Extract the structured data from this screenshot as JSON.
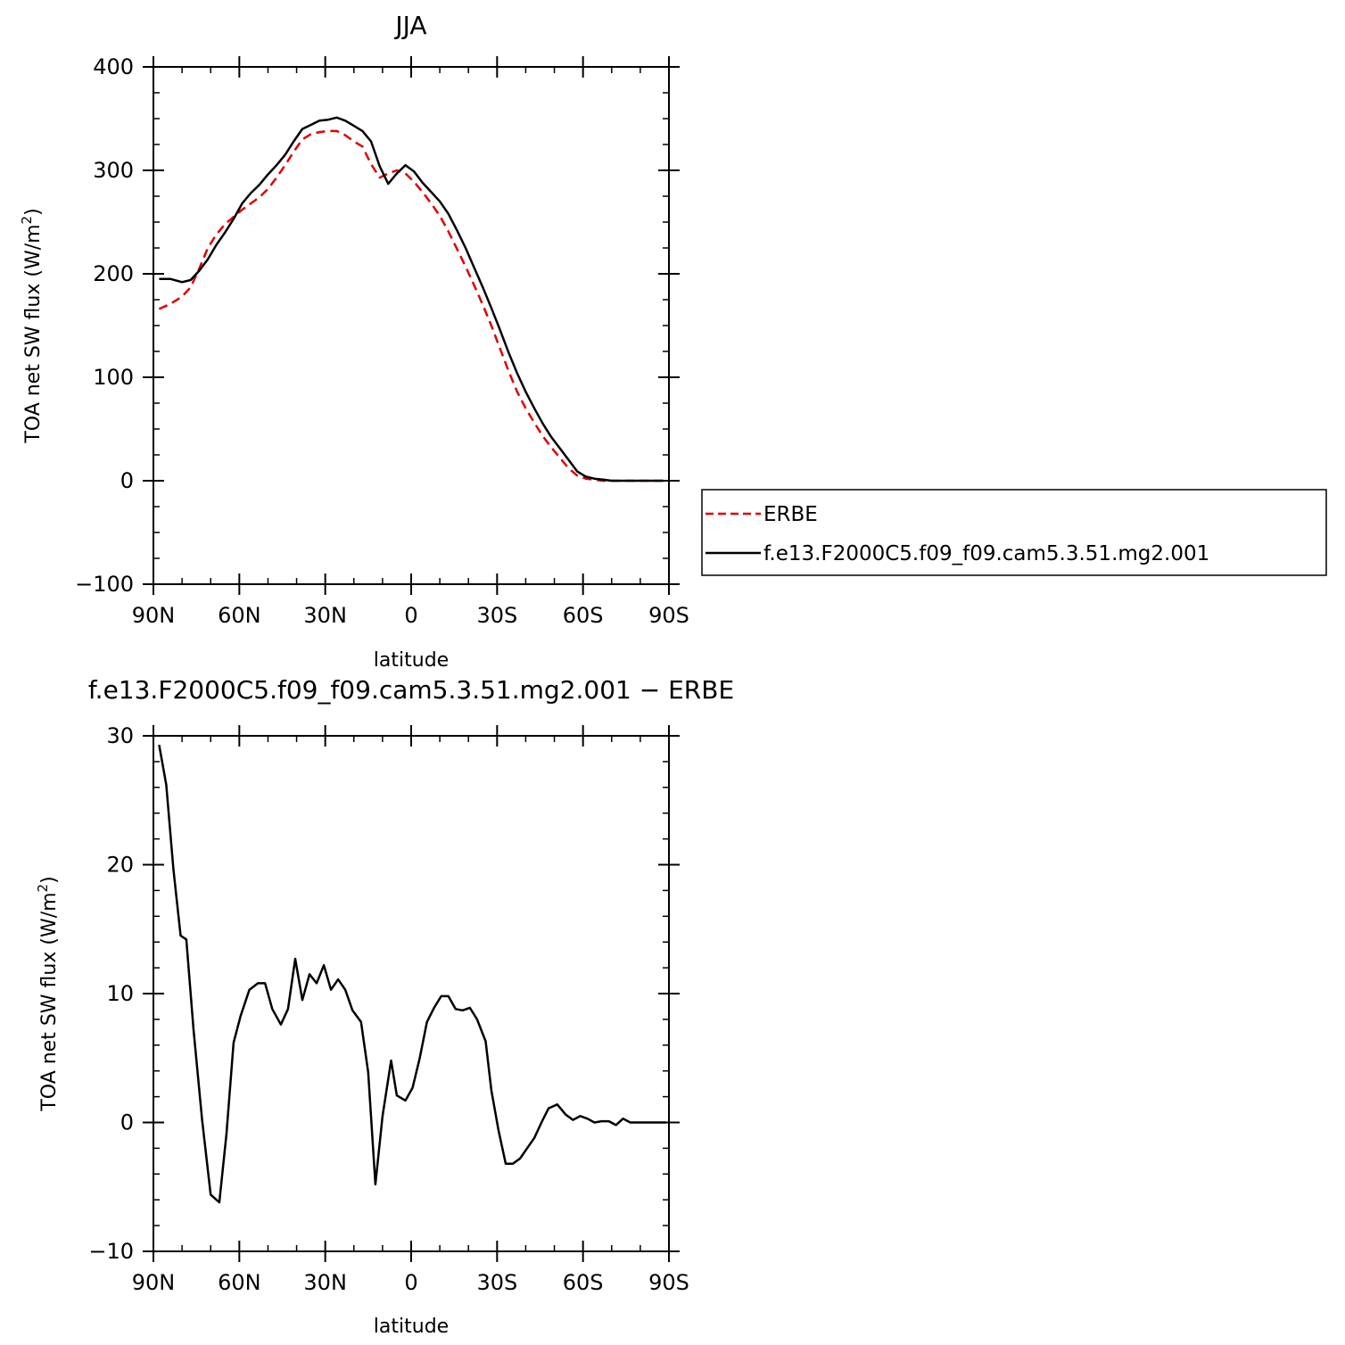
{
  "chart_data": [
    {
      "type": "line",
      "title": "JJA",
      "xlabel": "latitude",
      "ylabel_main": "TOA net SW flux (W/m",
      "ylabel_sup": "2",
      "ylabel_close": ")",
      "xlim": [
        90,
        -90
      ],
      "ylim": [
        -100,
        400
      ],
      "xtick_values": [
        90,
        60,
        30,
        0,
        -30,
        -60,
        -90
      ],
      "xtick_labels": [
        "90N",
        "60N",
        "30N",
        "0",
        "30S",
        "60S",
        "90S"
      ],
      "ytick_values": [
        -100,
        0,
        100,
        200,
        300,
        400
      ],
      "ytick_labels": [
        "−100",
        "0",
        "100",
        "200",
        "300",
        "400"
      ],
      "series": [
        {
          "name": "ERBE",
          "color": "#e00000",
          "dash": "dashed",
          "x": [
            88,
            84,
            80,
            77,
            74,
            71,
            68,
            65,
            62,
            59,
            56,
            53,
            50,
            47,
            44,
            41,
            38,
            35,
            32,
            29,
            26,
            23,
            20,
            17,
            14,
            11,
            8,
            5,
            2,
            -1,
            -4,
            -7,
            -10,
            -13,
            -16,
            -19,
            -22,
            -25,
            -28,
            -31,
            -34,
            -37,
            -40,
            -43,
            -46,
            -49,
            -52,
            -55,
            -58,
            -61,
            -64,
            -67,
            -70,
            -73,
            -76,
            -79,
            -82,
            -85,
            -88
          ],
          "y": [
            166,
            171,
            178,
            187,
            205,
            225,
            238,
            248,
            255,
            262,
            268,
            274,
            282,
            293,
            305,
            318,
            330,
            335,
            337,
            338,
            338,
            334,
            328,
            323,
            306,
            293,
            297,
            300,
            297,
            289,
            279,
            268,
            256,
            241,
            224,
            207,
            189,
            170,
            150,
            128,
            106,
            86,
            70,
            56,
            43,
            32,
            22,
            12,
            5,
            2,
            1,
            0,
            0,
            0,
            0,
            0,
            0,
            0,
            0
          ]
        },
        {
          "name": "f.e13.F2000C5.f09_f09.cam5.3.51.mg2.001",
          "color": "#000000",
          "dash": "solid",
          "x": [
            88,
            84,
            80,
            77,
            74,
            71,
            68,
            65,
            62,
            59,
            56,
            53,
            50,
            47,
            44,
            41,
            38,
            35,
            32,
            29,
            26,
            23,
            20,
            17,
            14,
            11,
            8,
            5,
            2,
            -1,
            -4,
            -7,
            -10,
            -13,
            -16,
            -19,
            -22,
            -25,
            -28,
            -31,
            -34,
            -37,
            -40,
            -43,
            -46,
            -49,
            -52,
            -55,
            -58,
            -61,
            -64,
            -67,
            -70,
            -73,
            -76,
            -79,
            -82,
            -85,
            -88
          ],
          "y": [
            195,
            195,
            192,
            194,
            203,
            214,
            228,
            240,
            253,
            268,
            278,
            286,
            296,
            305,
            315,
            328,
            340,
            344,
            348,
            349,
            351,
            348,
            343,
            338,
            328,
            304,
            287,
            297,
            305,
            299,
            288,
            279,
            270,
            258,
            242,
            225,
            206,
            187,
            167,
            146,
            124,
            104,
            86,
            70,
            55,
            42,
            31,
            20,
            9,
            4,
            2,
            1,
            0,
            0,
            0,
            0,
            0,
            0,
            0
          ]
        }
      ],
      "legend": {
        "placement": "right of plot",
        "entries": [
          {
            "label": "ERBE",
            "color": "#e00000",
            "style": "dashed"
          },
          {
            "label": "f.e13.F2000C5.f09_f09.cam5.3.51.mg2.001",
            "color": "#000000",
            "style": "solid"
          }
        ]
      }
    },
    {
      "type": "line",
      "title": "f.e13.F2000C5.f09_f09.cam5.3.51.mg2.001  −  ERBE",
      "xlabel": "latitude",
      "ylabel_main": "TOA net SW flux (W/m",
      "ylabel_sup": "2",
      "ylabel_close": ")",
      "xlim": [
        90,
        -90
      ],
      "ylim": [
        -10,
        30
      ],
      "xtick_values": [
        90,
        60,
        30,
        0,
        -30,
        -60,
        -90
      ],
      "xtick_labels": [
        "90N",
        "60N",
        "30N",
        "0",
        "30S",
        "60S",
        "90S"
      ],
      "ytick_values": [
        -10,
        0,
        10,
        20,
        30
      ],
      "ytick_labels": [
        "−10",
        "0",
        "10",
        "20",
        "30"
      ],
      "series": [
        {
          "color": "#000000",
          "x": [
            88,
            85.5,
            83,
            80.5,
            78.5,
            76,
            73,
            70,
            67,
            64.5,
            62,
            59.5,
            56.5,
            53.5,
            51,
            48.5,
            45.5,
            43,
            40.5,
            38,
            35.5,
            33,
            30.5,
            28,
            25.5,
            23,
            20.5,
            17.5,
            15,
            12.5,
            10,
            7,
            5,
            2,
            -0.5,
            -3,
            -5.5,
            -8,
            -10.5,
            -13,
            -15.5,
            -18,
            -20.5,
            -23,
            -26,
            -28,
            -30.5,
            -33,
            -35.5,
            -38,
            -40.5,
            -43,
            -45.5,
            -48,
            -51,
            -54,
            -56.5,
            -59,
            -61.5,
            -64,
            -66.5,
            -69,
            -71.5,
            -74,
            -76.5,
            -79,
            -81.5,
            -84,
            -86.5,
            -89
          ],
          "y": [
            29.3,
            26.2,
            19.6,
            14.5,
            14.2,
            7.2,
            0.2,
            -5.6,
            -6.2,
            -0.9,
            6.2,
            8.3,
            10.3,
            10.8,
            10.8,
            8.8,
            7.6,
            8.8,
            12.7,
            9.5,
            11.5,
            10.8,
            12.2,
            10.3,
            11.1,
            10.3,
            8.7,
            7.8,
            3.9,
            -4.8,
            0.5,
            4.8,
            2.1,
            1.7,
            2.7,
            5.0,
            7.8,
            8.9,
            9.8,
            9.8,
            8.8,
            8.7,
            8.9,
            8.0,
            6.3,
            2.5,
            -0.6,
            -3.2,
            -3.2,
            -2.8,
            -2.0,
            -1.2,
            0.0,
            1.1,
            1.4,
            0.6,
            0.2,
            0.5,
            0.3,
            0.0,
            0.1,
            0.1,
            -0.2,
            0.3,
            0.0,
            0.0,
            0.0,
            0.0,
            0.0,
            0.0
          ]
        }
      ]
    }
  ]
}
